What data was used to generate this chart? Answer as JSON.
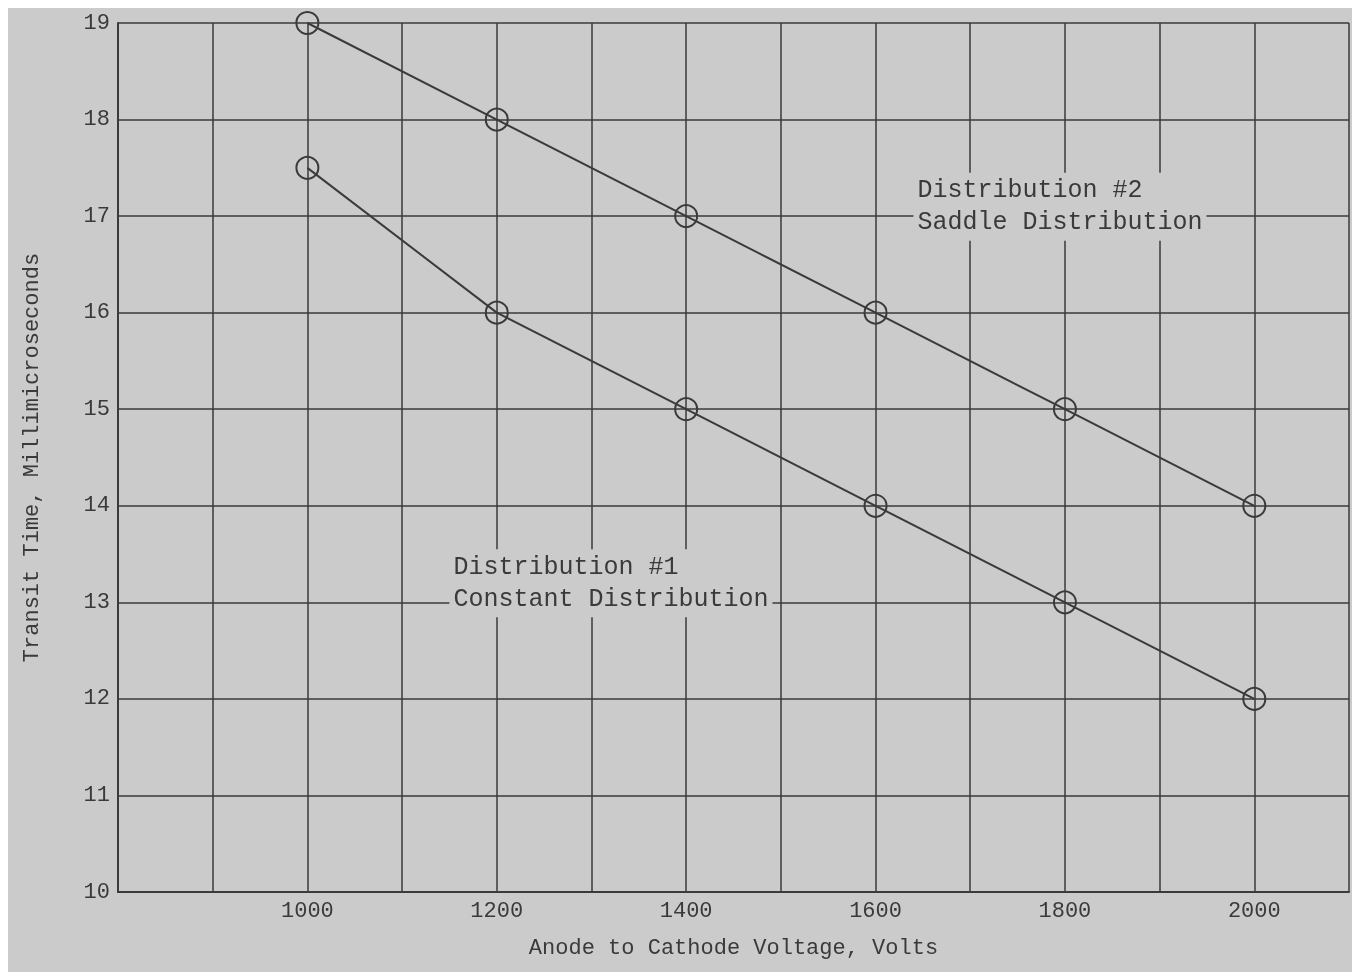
{
  "chart_data": {
    "type": "line",
    "xlabel": "Anode to Cathode Voltage, Volts",
    "ylabel": "Transit Time, Millimicroseconds",
    "x": [
      1000,
      1200,
      1400,
      1600,
      1800,
      2000
    ],
    "series": [
      {
        "color": "#3a3a3a",
        "values": [
          17.5,
          16,
          15,
          14,
          13,
          12
        ]
      },
      {
        "color": "#3a3a3a",
        "values": [
          19,
          18,
          17,
          16,
          15,
          14
        ]
      }
    ],
    "xlim": [
      800,
      2100
    ],
    "xticks": [
      {
        "value": 800,
        "label": null
      },
      {
        "value": 900,
        "label": null
      },
      1000,
      {
        "value": 1100,
        "label": null
      },
      1200,
      {
        "value": 1300,
        "label": null
      },
      1400,
      {
        "value": 1500,
        "label": null
      },
      1600,
      {
        "value": 1700,
        "label": null
      },
      1800,
      {
        "value": 1900,
        "label": null
      },
      2000,
      {
        "value": 2100,
        "label": null
      }
    ],
    "ylim": [
      10,
      19
    ],
    "yticks": [
      10,
      11,
      12,
      13,
      14,
      15,
      16,
      17,
      18,
      19
    ],
    "grid": true,
    "marker": "circle",
    "line_style": "solid",
    "annotations": [
      "Distribution #1\nConstant Distribution",
      "Distribution #2\nSaddle Distribution"
    ]
  }
}
